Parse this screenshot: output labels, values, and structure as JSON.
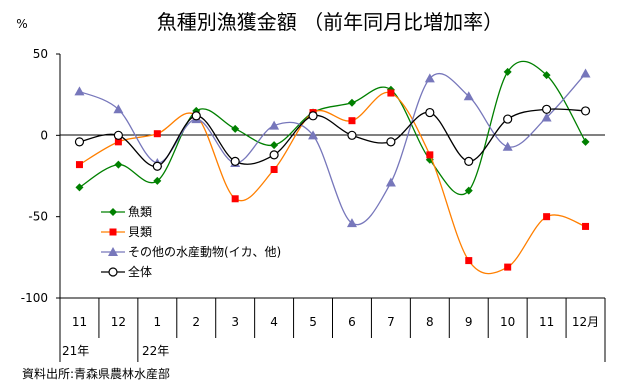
{
  "chart_data": {
    "type": "line",
    "title": "魚種別漁獲金額 （前年同月比増加率）",
    "ylabel": "%",
    "xlabel": "",
    "ylim": [
      -100,
      50
    ],
    "y_ticks": [
      "50",
      "0",
      "-50",
      "-100"
    ],
    "y_tick_values": [
      50,
      0,
      -50,
      -100
    ],
    "grid": false,
    "categories": [
      "11",
      "12",
      "1",
      "2",
      "3",
      "4",
      "5",
      "6",
      "7",
      "8",
      "9",
      "10",
      "11",
      "12月"
    ],
    "year_labels": [
      "21年",
      "22年"
    ],
    "legend_position": "left-middle",
    "series": [
      {
        "name": "魚類",
        "color": "#008000",
        "marker": "diamond",
        "values": [
          -32,
          -18,
          -28,
          15,
          4,
          -6,
          14,
          20,
          28,
          -15,
          -34,
          39,
          37,
          -4
        ]
      },
      {
        "name": "貝類",
        "color": "#ff0000",
        "marker": "square",
        "values": [
          -18,
          -4,
          1,
          12,
          -39,
          -21,
          14,
          9,
          26,
          -12,
          -77,
          -81,
          -50,
          -56
        ]
      },
      {
        "name": "その他の水産動物(イカ、他)",
        "color": "#7777bb",
        "marker": "triangle",
        "values": [
          27,
          16,
          -17,
          10,
          -17,
          6,
          0,
          -54,
          -29,
          35,
          24,
          -7,
          11,
          38
        ]
      },
      {
        "name": "全体",
        "color": "#000000",
        "marker": "circle",
        "values": [
          -4,
          0,
          -19,
          12,
          -16,
          -12,
          12,
          0,
          -4,
          14,
          -16,
          10,
          16,
          15
        ]
      }
    ],
    "source": "資料出所:青森県農林水産部"
  }
}
